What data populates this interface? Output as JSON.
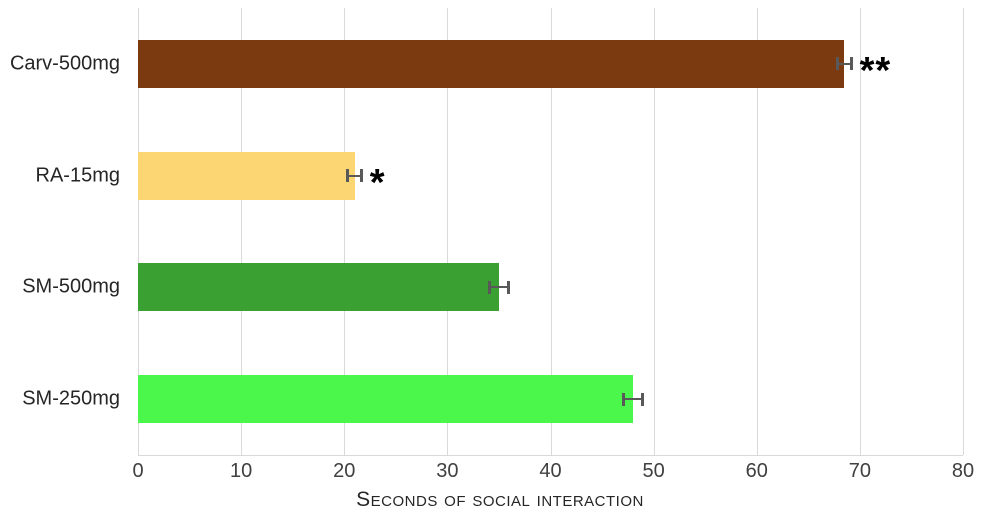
{
  "chart_data": {
    "type": "bar",
    "orientation": "horizontal",
    "title": "",
    "xlabel": "Seconds of social interaction",
    "ylabel": "",
    "categories": [
      "Carv-500mg",
      "RA-15mg",
      "SM-500mg",
      "SM-250mg"
    ],
    "values": [
      68.5,
      21,
      35,
      48
    ],
    "errors": [
      0.7,
      0.7,
      0.9,
      0.9
    ],
    "annotations": [
      "**",
      "*",
      "",
      ""
    ],
    "bar_colors": [
      "#7B3A10",
      "#FBD672",
      "#3BA032",
      "#4BF74B"
    ],
    "xlim": [
      0,
      80
    ],
    "xticks": [
      0,
      10,
      20,
      30,
      40,
      50,
      60,
      70,
      80
    ],
    "grid": "vertical",
    "legend": "none",
    "gridline_color": "#d9d9d9",
    "error_bar_color": "#595959",
    "tick_label_color": "#404040",
    "axis_label_color": "#262626",
    "background": "#ffffff"
  }
}
